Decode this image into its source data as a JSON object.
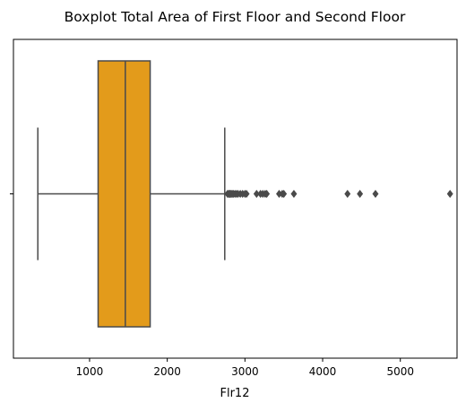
{
  "chart_data": {
    "type": "boxplot",
    "title": "Boxplot Total Area of First Floor and Second Floor",
    "xlabel": "Flr12",
    "ylabel": "",
    "orientation": "horizontal",
    "xlim": [
      20,
      5730
    ],
    "xticks": [
      1000,
      2000,
      3000,
      4000,
      5000
    ],
    "xtick_labels": [
      "1000",
      "2000",
      "3000",
      "4000",
      "5000"
    ],
    "yticks": [
      ""
    ],
    "grid": false,
    "box": {
      "color": "#E39B1B",
      "edge_color": "#4a4a4a",
      "whisker_low": 334,
      "q1": 1110,
      "median": 1460,
      "q3": 1780,
      "whisker_high": 2740
    },
    "outliers": [
      2775,
      2790,
      2800,
      2810,
      2822,
      2836,
      2850,
      2870,
      2890,
      2910,
      2940,
      2970,
      3000,
      3020,
      3150,
      3200,
      3230,
      3260,
      3280,
      3440,
      3480,
      3500,
      3630,
      4320,
      4480,
      4680,
      5640
    ]
  }
}
